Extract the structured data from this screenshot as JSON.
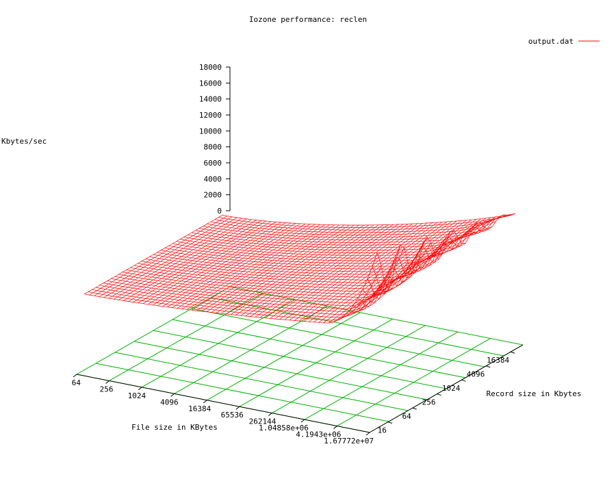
{
  "chart_data": {
    "type": "surface",
    "title": "Iozone performance: reclen",
    "legend": {
      "label": "output.dat",
      "position": "top-right",
      "color": "#ff0000"
    },
    "zlabel": "Kbytes/sec",
    "xlabel": "File size in KBytes",
    "ylabel": "Record size in Kbytes",
    "zlim": [
      0,
      18000
    ],
    "z_ticks": [
      "0",
      "2000",
      "4000",
      "6000",
      "8000",
      "10000",
      "12000",
      "14000",
      "16000",
      "18000"
    ],
    "x_ticks": [
      "64",
      "256",
      "1024",
      "4096",
      "16384",
      "65536",
      "262144",
      "1.04858e+06",
      "4.1943e+06",
      "1.67772e+07"
    ],
    "y_ticks": [
      "16",
      "64",
      "256",
      "1024",
      "4096",
      "16384"
    ],
    "colors": {
      "surface": "#ff0000",
      "base_grid": "#00b000",
      "axes": "#000000"
    },
    "surface_description": "surface rises from about 0 near small file sizes to about 7500 at 1.67772e+07 KB and small record size; rises steeply to about 18000 at 1.67772e+07 KB and large record size (16384 KB), with oscillating ridges"
  }
}
